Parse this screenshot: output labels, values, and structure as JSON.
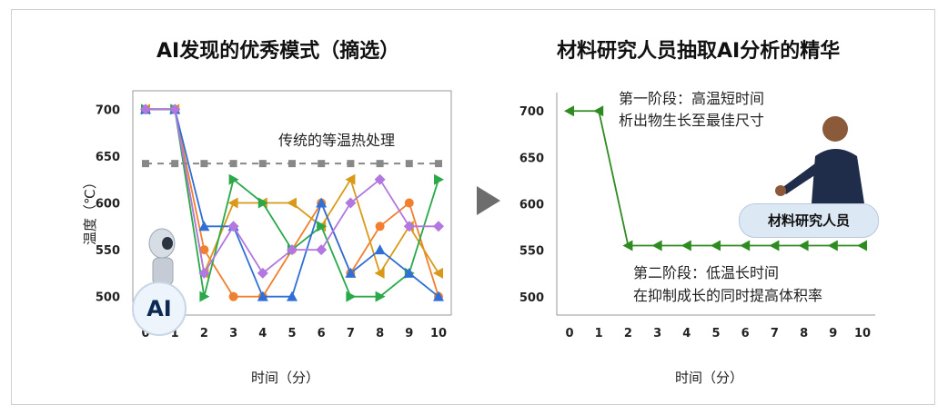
{
  "left": {
    "title": "AI发现的优秀模式（摘选）",
    "ylabel": "温度（℃）",
    "xlabel": "时间（分）",
    "annotation": "传统的等温热处理",
    "ai_badge": "AI"
  },
  "right": {
    "title": "材料研究人员抽取AI分析的精华",
    "xlabel": "时间（分）",
    "stage1_line1": "第一阶段：高温短时间",
    "stage1_line2": "析出物生长至最佳尺寸",
    "stage2_line1": "第二阶段：低温长时间",
    "stage2_line2": "在抑制成长的同时提高体积率",
    "person_label": "材料研究人员"
  },
  "colors": {
    "orange": "#f08030",
    "gold": "#d99a1a",
    "green": "#2aa84a",
    "blue": "#2f6fd6",
    "purple": "#b277e0",
    "gray": "#888888",
    "darkgreen": "#2e8b1f"
  },
  "chart_data": [
    {
      "type": "line",
      "x": [
        0,
        1,
        2,
        3,
        4,
        5,
        6,
        7,
        8,
        9,
        10
      ],
      "xlim": [
        0,
        10
      ],
      "ylim": [
        490,
        710
      ],
      "yticks": [
        500,
        550,
        600,
        650,
        700
      ],
      "ylabel": "温度（℃）",
      "xlabel": "时间（分）",
      "series": [
        {
          "color": "orange",
          "marker": "circle",
          "values": [
            700,
            700,
            550,
            500,
            500,
            550,
            600,
            525,
            575,
            600,
            500
          ]
        },
        {
          "color": "gold",
          "marker": "triangle-left",
          "values": [
            700,
            700,
            525,
            600,
            600,
            600,
            575,
            625,
            525,
            575,
            525
          ]
        },
        {
          "color": "green",
          "marker": "triangle-right",
          "values": [
            700,
            700,
            500,
            625,
            600,
            550,
            575,
            500,
            500,
            525,
            625
          ]
        },
        {
          "color": "blue",
          "marker": "triangle-up",
          "values": [
            700,
            700,
            575,
            575,
            500,
            500,
            600,
            525,
            550,
            525,
            500
          ]
        },
        {
          "color": "purple",
          "marker": "diamond",
          "values": [
            700,
            700,
            525,
            575,
            525,
            550,
            550,
            600,
            625,
            575,
            575
          ]
        },
        {
          "name": "传统的等温热处理",
          "color": "gray",
          "marker": "square",
          "dashed": true,
          "values": [
            642,
            642,
            642,
            642,
            642,
            642,
            642,
            642,
            642,
            642,
            642
          ]
        }
      ]
    },
    {
      "type": "line",
      "x": [
        0,
        1,
        2,
        3,
        4,
        5,
        6,
        7,
        8,
        9,
        10
      ],
      "xlim": [
        0,
        10
      ],
      "ylim": [
        490,
        710
      ],
      "yticks": [
        500,
        550,
        600,
        650,
        700
      ],
      "xlabel": "时间（分）",
      "series": [
        {
          "color": "darkgreen",
          "marker": "triangle-left",
          "values": [
            700,
            700,
            555,
            555,
            555,
            555,
            555,
            555,
            555,
            555,
            555
          ]
        }
      ]
    }
  ]
}
